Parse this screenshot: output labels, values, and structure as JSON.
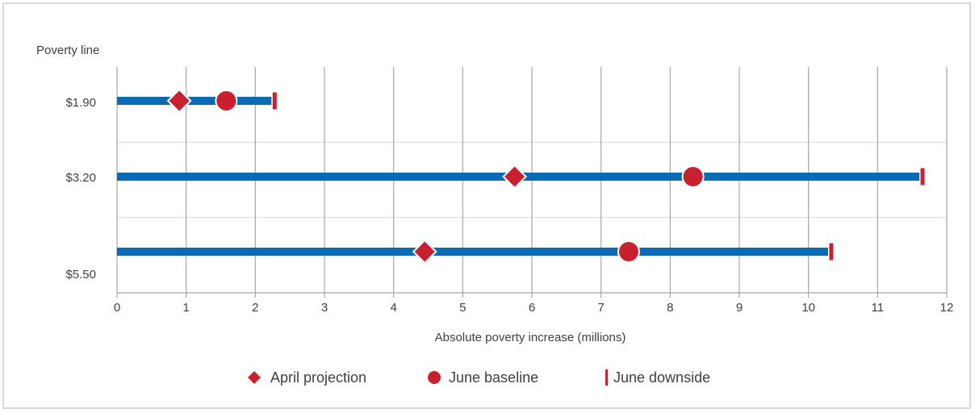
{
  "chart_data": {
    "type": "dot-range",
    "y_title": "Poverty line",
    "xlabel": "Absolute poverty increase (millions)",
    "xlim": [
      0,
      12
    ],
    "x_ticks": [
      "0",
      "1",
      "2",
      "3",
      "4",
      "5",
      "6",
      "7",
      "8",
      "9",
      "10",
      "11",
      "12"
    ],
    "grid": "vertical",
    "legend_position": "bottom",
    "categories": [
      "$1.90",
      "$3.20",
      "$5.50"
    ],
    "series": [
      {
        "name": "April projection",
        "marker": "diamond",
        "values": [
          0.9,
          5.75,
          4.45
        ]
      },
      {
        "name": "June baseline",
        "marker": "circle",
        "values": [
          1.58,
          8.33,
          7.4
        ]
      },
      {
        "name": "June downside",
        "marker": "bar",
        "values": [
          2.28,
          11.65,
          10.33
        ]
      }
    ],
    "colors": {
      "range_bar": "#0a6ab5",
      "markers": "#c8202f",
      "grid": "#a6a6a6",
      "text": "#404040"
    }
  }
}
